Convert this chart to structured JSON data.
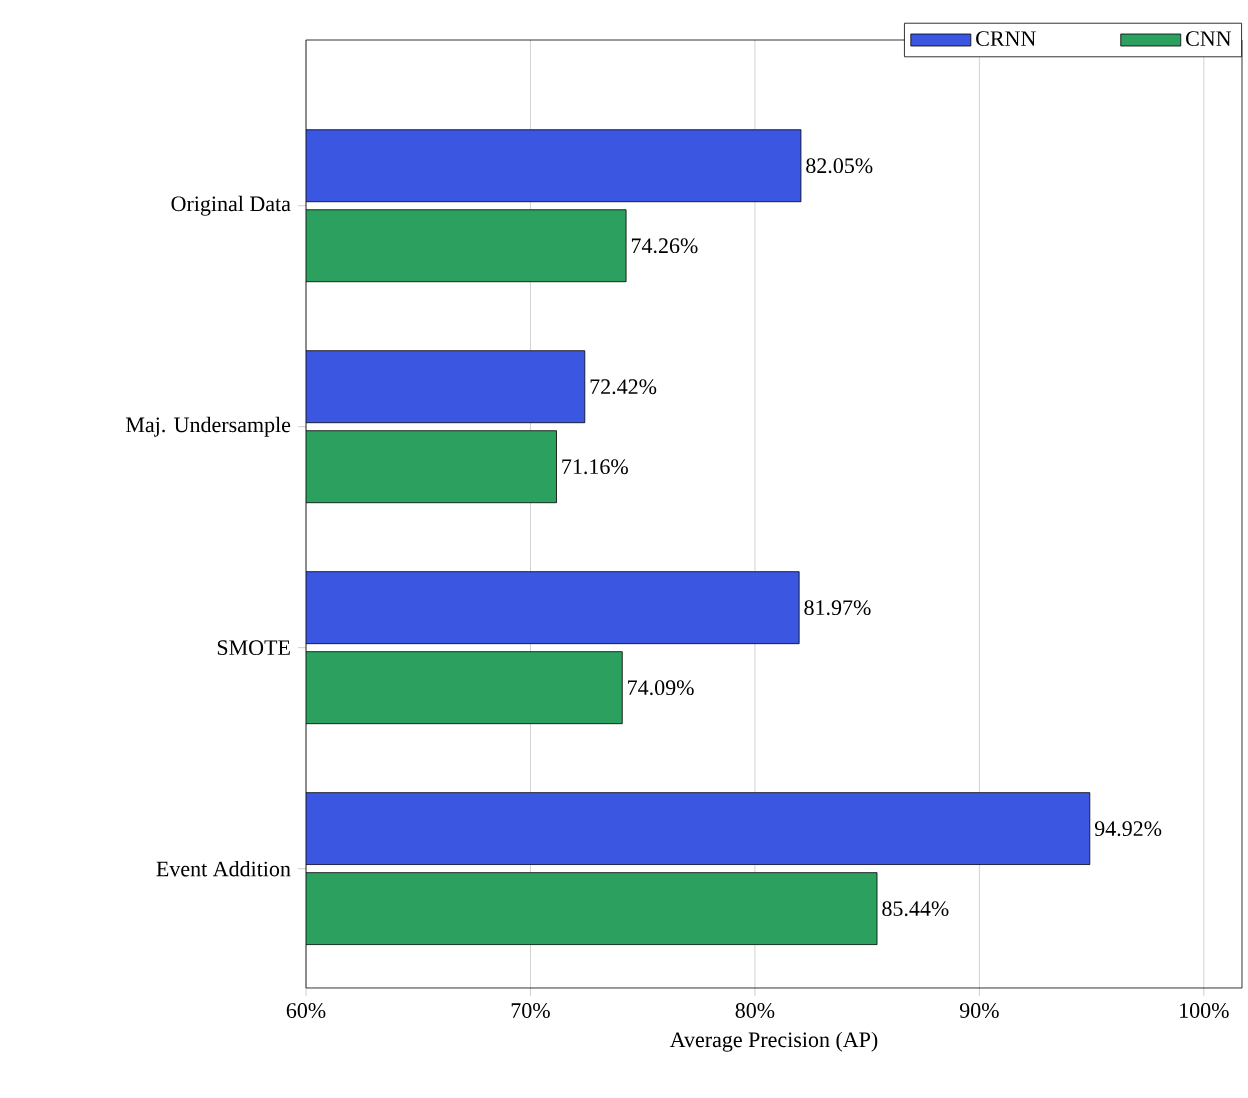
{
  "chart_data": {
    "type": "bar",
    "orientation": "horizontal",
    "xlabel": "Average Precision (AP)",
    "categories": [
      "Original Data",
      "Maj. Undersample",
      "SMOTE",
      "Event Addition"
    ],
    "series": [
      {
        "name": "CRNN",
        "color": "#3b56e0",
        "values": [
          82.05,
          72.42,
          81.97,
          94.92
        ],
        "value_labels": [
          "82.05%",
          "72.42%",
          "81.97%",
          "94.92%"
        ]
      },
      {
        "name": "CNN",
        "color": "#2ca05e",
        "values": [
          74.26,
          71.16,
          74.09,
          85.44
        ],
        "value_labels": [
          "74.26%",
          "71.16%",
          "74.09%",
          "85.44%"
        ]
      }
    ],
    "xlim": [
      60,
      101.7
    ],
    "xticks": [
      {
        "value": 60,
        "label": "60%"
      },
      {
        "value": 70,
        "label": "70%"
      },
      {
        "value": 80,
        "label": "80%"
      },
      {
        "value": 90,
        "label": "90%"
      },
      {
        "value": 100,
        "label": "100%"
      }
    ],
    "grid": "x",
    "legend": "top right"
  }
}
